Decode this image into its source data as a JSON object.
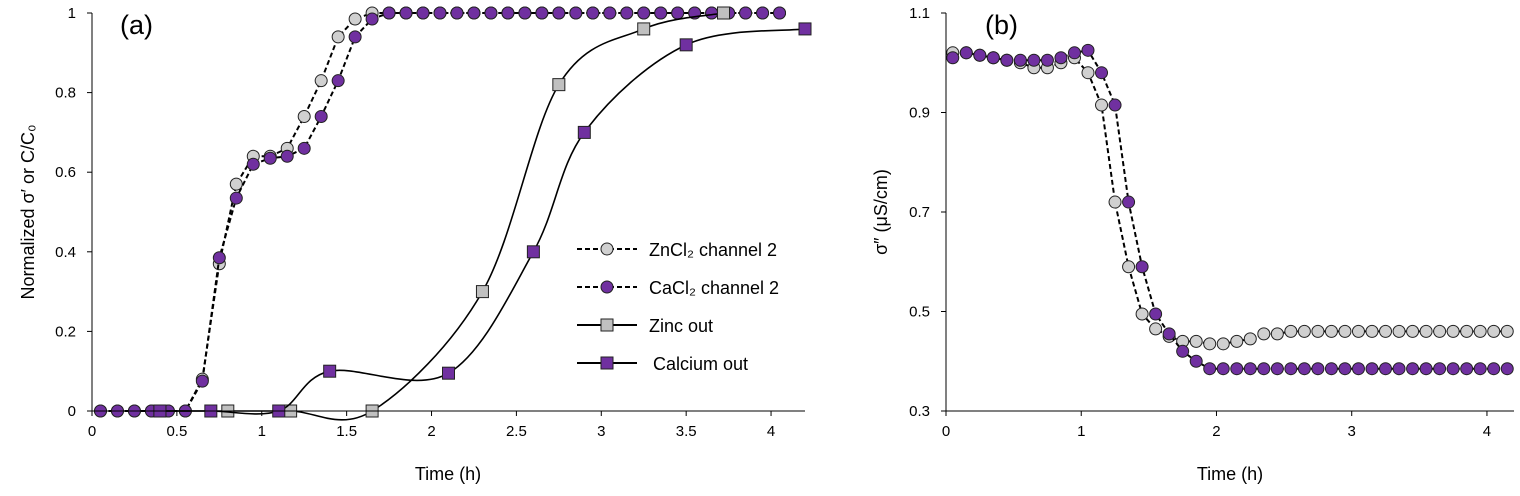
{
  "chart_data": [
    {
      "type": "scatter",
      "panel_label": "(a)",
      "xlabel": "Time (h)",
      "ylabel": "Normalized σ′ or C/C₀",
      "xlim": [
        0,
        4.2
      ],
      "ylim": [
        0,
        1
      ],
      "xticks": [
        "0",
        "0.5",
        "1",
        "1.5",
        "2",
        "2.5",
        "3",
        "3.5",
        "4"
      ],
      "yticks": [
        "0",
        "0.2",
        "0.4",
        "0.6",
        "0.8",
        "1"
      ],
      "grid": false,
      "legend_position": "center-right",
      "series": [
        {
          "name": "ZnCl₂ channel 2",
          "marker": "circle",
          "line": "dashed",
          "color": "#d0d0d0",
          "x": [
            0.05,
            0.15,
            0.25,
            0.35,
            0.45,
            0.55,
            0.65,
            0.75,
            0.85,
            0.95,
            1.05,
            1.15,
            1.25,
            1.35,
            1.45,
            1.55,
            1.65,
            1.75,
            1.85,
            1.95,
            2.05,
            2.15,
            2.25,
            2.35,
            2.45,
            2.55,
            2.65,
            2.75,
            2.85,
            2.95,
            3.05,
            3.15,
            3.25,
            3.35,
            3.45,
            3.55,
            3.65,
            3.75,
            3.85,
            3.95,
            4.05
          ],
          "y": [
            0,
            0,
            0,
            0,
            0,
            0,
            0.08,
            0.37,
            0.57,
            0.64,
            0.64,
            0.66,
            0.74,
            0.83,
            0.94,
            0.985,
            1,
            1,
            1,
            1,
            1,
            1,
            1,
            1,
            1,
            1,
            1,
            1,
            1,
            1,
            1,
            1,
            1,
            1,
            1,
            1,
            1,
            1,
            1,
            1,
            1
          ]
        },
        {
          "name": "CaCl₂ channel 2",
          "marker": "circle",
          "line": "dashed",
          "color": "#7030a0",
          "x": [
            0.05,
            0.15,
            0.25,
            0.35,
            0.45,
            0.55,
            0.65,
            0.75,
            0.85,
            0.95,
            1.05,
            1.15,
            1.25,
            1.35,
            1.45,
            1.55,
            1.65,
            1.75,
            1.85,
            1.95,
            2.05,
            2.15,
            2.25,
            2.35,
            2.45,
            2.55,
            2.65,
            2.75,
            2.85,
            2.95,
            3.05,
            3.15,
            3.25,
            3.35,
            3.45,
            3.55,
            3.65,
            3.75,
            3.85,
            3.95,
            4.05
          ],
          "y": [
            0,
            0,
            0,
            0,
            0,
            0,
            0.075,
            0.385,
            0.535,
            0.62,
            0.635,
            0.64,
            0.66,
            0.74,
            0.83,
            0.94,
            0.985,
            1,
            1,
            1,
            1,
            1,
            1,
            1,
            1,
            1,
            1,
            1,
            1,
            1,
            1,
            1,
            1,
            1,
            1,
            1,
            1,
            1,
            1,
            1,
            1
          ]
        },
        {
          "name": "Zinc out",
          "marker": "square",
          "line": "smooth",
          "color": "#c0c0c0",
          "x": [
            0.4,
            0.8,
            1.17,
            1.65,
            2.3,
            2.75,
            3.25,
            3.72
          ],
          "y": [
            0,
            0,
            0,
            0,
            0.3,
            0.82,
            0.96,
            1.0
          ]
        },
        {
          "name": "Calcium out",
          "marker": "square",
          "line": "smooth",
          "color": "#7030a0",
          "x": [
            0.4,
            0.7,
            1.1,
            1.4,
            2.1,
            2.6,
            2.9,
            3.5,
            4.2
          ],
          "y": [
            0,
            0,
            0,
            0.1,
            0.095,
            0.4,
            0.7,
            0.92,
            0.96
          ]
        }
      ]
    },
    {
      "type": "scatter",
      "panel_label": "(b)",
      "xlabel": "Time (h)",
      "ylabel": "σ″ (μS/cm)",
      "xlim": [
        0,
        4.2
      ],
      "ylim": [
        0.3,
        1.1
      ],
      "xticks": [
        "0",
        "1",
        "2",
        "3",
        "4"
      ],
      "yticks": [
        "0.3",
        "0.5",
        "0.7",
        "0.9",
        "1.1"
      ],
      "grid": false,
      "series": [
        {
          "marker": "circle",
          "line": "dashed",
          "color": "#d0d0d0",
          "x": [
            0.05,
            0.15,
            0.25,
            0.35,
            0.45,
            0.55,
            0.65,
            0.75,
            0.85,
            0.95,
            1.05,
            1.15,
            1.25,
            1.35,
            1.45,
            1.55,
            1.65,
            1.75,
            1.85,
            1.95,
            2.05,
            2.15,
            2.25,
            2.35,
            2.45,
            2.55,
            2.65,
            2.75,
            2.85,
            2.95,
            3.05,
            3.15,
            3.25,
            3.35,
            3.45,
            3.55,
            3.65,
            3.75,
            3.85,
            3.95,
            4.05,
            4.15
          ],
          "y": [
            1.02,
            1.02,
            1.015,
            1.01,
            1.005,
            1.0,
            0.99,
            0.99,
            1.0,
            1.01,
            0.98,
            0.915,
            0.72,
            0.59,
            0.495,
            0.465,
            0.45,
            0.44,
            0.44,
            0.435,
            0.435,
            0.44,
            0.445,
            0.455,
            0.455,
            0.46,
            0.46,
            0.46,
            0.46,
            0.46,
            0.46,
            0.46,
            0.46,
            0.46,
            0.46,
            0.46,
            0.46,
            0.46,
            0.46,
            0.46,
            0.46,
            0.46
          ]
        },
        {
          "marker": "circle",
          "line": "dashed",
          "color": "#7030a0",
          "x": [
            0.05,
            0.15,
            0.25,
            0.35,
            0.45,
            0.55,
            0.65,
            0.75,
            0.85,
            0.95,
            1.05,
            1.15,
            1.25,
            1.35,
            1.45,
            1.55,
            1.65,
            1.75,
            1.85,
            1.95,
            2.05,
            2.15,
            2.25,
            2.35,
            2.45,
            2.55,
            2.65,
            2.75,
            2.85,
            2.95,
            3.05,
            3.15,
            3.25,
            3.35,
            3.45,
            3.55,
            3.65,
            3.75,
            3.85,
            3.95,
            4.05,
            4.15
          ],
          "y": [
            1.01,
            1.02,
            1.015,
            1.01,
            1.005,
            1.005,
            1.005,
            1.005,
            1.01,
            1.02,
            1.025,
            0.98,
            0.915,
            0.72,
            0.59,
            0.495,
            0.455,
            0.42,
            0.4,
            0.385,
            0.385,
            0.385,
            0.385,
            0.385,
            0.385,
            0.385,
            0.385,
            0.385,
            0.385,
            0.385,
            0.385,
            0.385,
            0.385,
            0.385,
            0.385,
            0.385,
            0.385,
            0.385,
            0.385,
            0.385,
            0.385,
            0.385
          ]
        }
      ]
    }
  ]
}
